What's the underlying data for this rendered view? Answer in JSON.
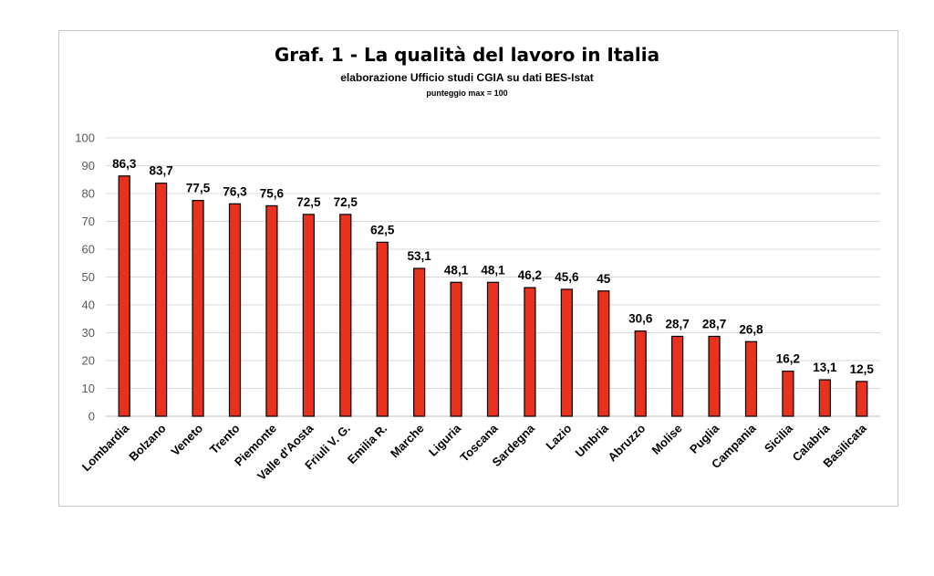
{
  "chart_data": {
    "type": "bar",
    "title": "Graf. 1 - La qualità del lavoro in Italia",
    "subtitle": "elaborazione Ufficio studi CGIA su dati BES-Istat",
    "note": "punteggio max = 100",
    "categories": [
      "Lombardia",
      "Bolzano",
      "Veneto",
      "Trento",
      "Piemonte",
      "Valle d'Aosta",
      "Friuli V. G.",
      "Emilia R.",
      "Marche",
      "Liguria",
      "Toscana",
      "Sardegna",
      "Lazio",
      "Umbria",
      "Abruzzo",
      "Molise",
      "Puglia",
      "Campania",
      "Sicilia",
      "Calabria",
      "Basilicata"
    ],
    "values": [
      86.3,
      83.7,
      77.5,
      76.3,
      75.6,
      72.5,
      72.5,
      62.5,
      53.1,
      48.1,
      48.1,
      46.2,
      45.6,
      45,
      30.6,
      28.7,
      28.7,
      26.8,
      16.2,
      13.1,
      12.5
    ],
    "data_labels": [
      "86,3",
      "83,7",
      "77,5",
      "76,3",
      "75,6",
      "72,5",
      "72,5",
      "62,5",
      "53,1",
      "48,1",
      "48,1",
      "46,2",
      "45,6",
      "45",
      "30,6",
      "28,7",
      "28,7",
      "26,8",
      "16,2",
      "13,1",
      "12,5"
    ],
    "yticks": [
      0,
      10,
      20,
      30,
      40,
      50,
      60,
      70,
      80,
      90,
      100
    ],
    "ylim": [
      0,
      100
    ],
    "grid": true,
    "legend": "none",
    "bar_color": "#e8321e",
    "bar_edge_color": "#000000",
    "grid_color": "#d9d9d9"
  }
}
